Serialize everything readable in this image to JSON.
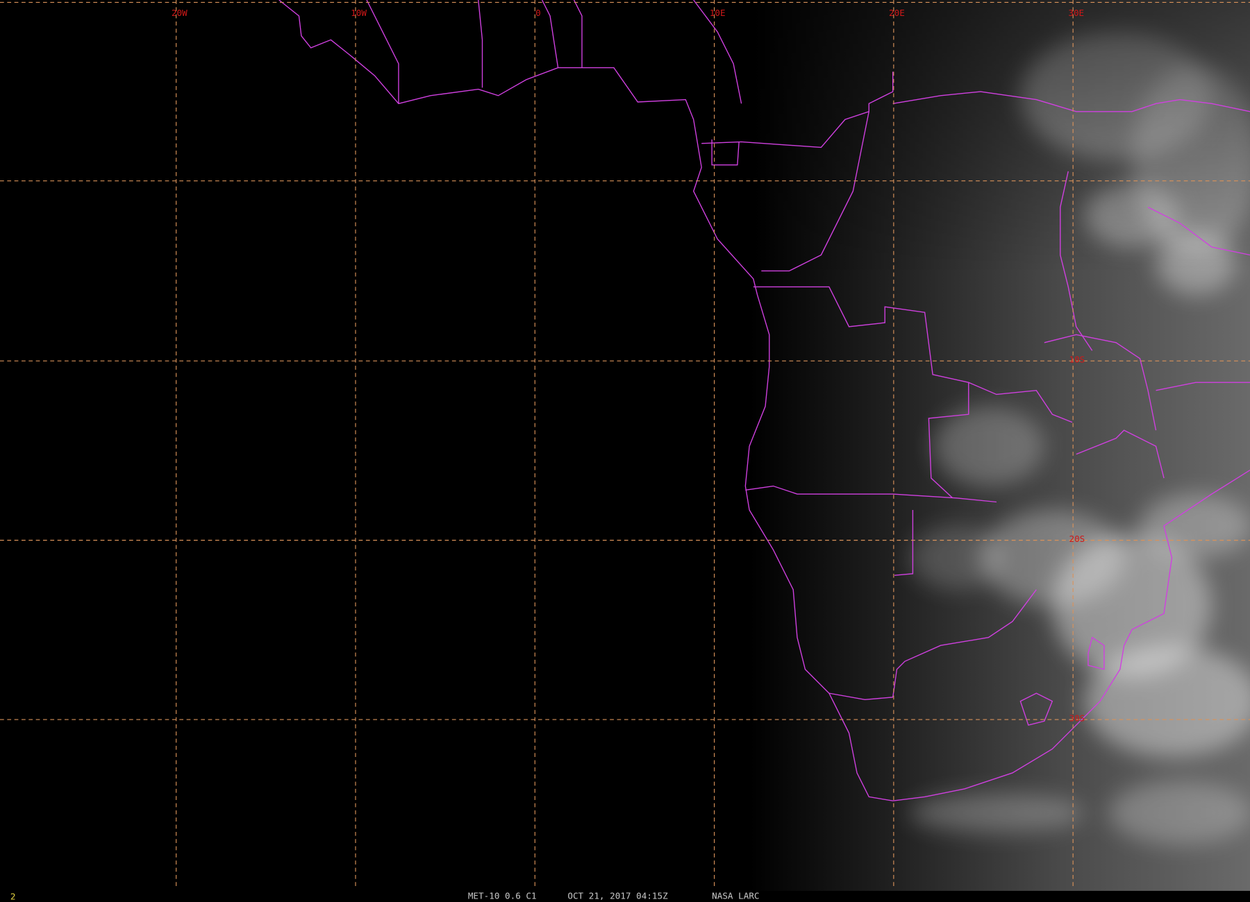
{
  "longitude_labels": [
    "20W",
    "10W",
    "0",
    "10E",
    "20E",
    "30E"
  ],
  "latitude_labels": [
    "10S",
    "20S",
    "30S"
  ],
  "footer": {
    "frame": "2",
    "satellite": "MET-10 0.6 C1",
    "time": "OCT 21, 2017 04:15Z",
    "source": "NASA LARC"
  }
}
